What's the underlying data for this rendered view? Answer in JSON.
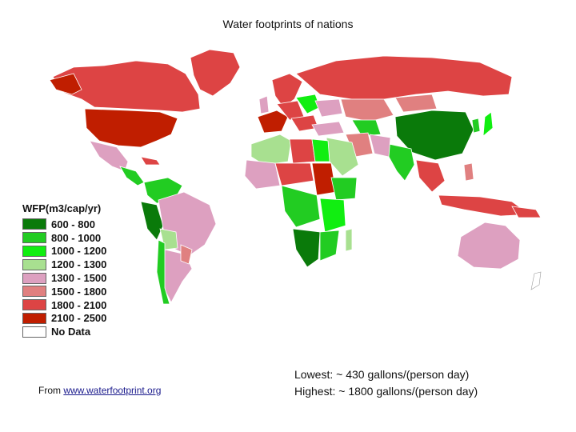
{
  "title": "Water footprints of nations",
  "legend": {
    "title": "WFP(m3/cap/yr)",
    "items": [
      {
        "label": "600 - 800",
        "color": "#0a7a0a"
      },
      {
        "label": "800 - 1000",
        "color": "#22cc22"
      },
      {
        "label": "1000 - 1200",
        "color": "#11ee11"
      },
      {
        "label": "1200 - 1300",
        "color": "#a8e090"
      },
      {
        "label": "1300 - 1500",
        "color": "#dda0c0"
      },
      {
        "label": "1500 - 1800",
        "color": "#e08080"
      },
      {
        "label": "1800 - 2100",
        "color": "#dd4444"
      },
      {
        "label": "2100 - 2500",
        "color": "#c01e00"
      },
      {
        "label": "No Data",
        "color": "#ffffff"
      }
    ]
  },
  "source": {
    "prefix": "From ",
    "link_text": "www.waterfootprint.org"
  },
  "stats": {
    "lowest": "Lowest: ~ 430 gallons/(person day)",
    "highest": "Highest: ~ 1800 gallons/(person day)"
  }
}
